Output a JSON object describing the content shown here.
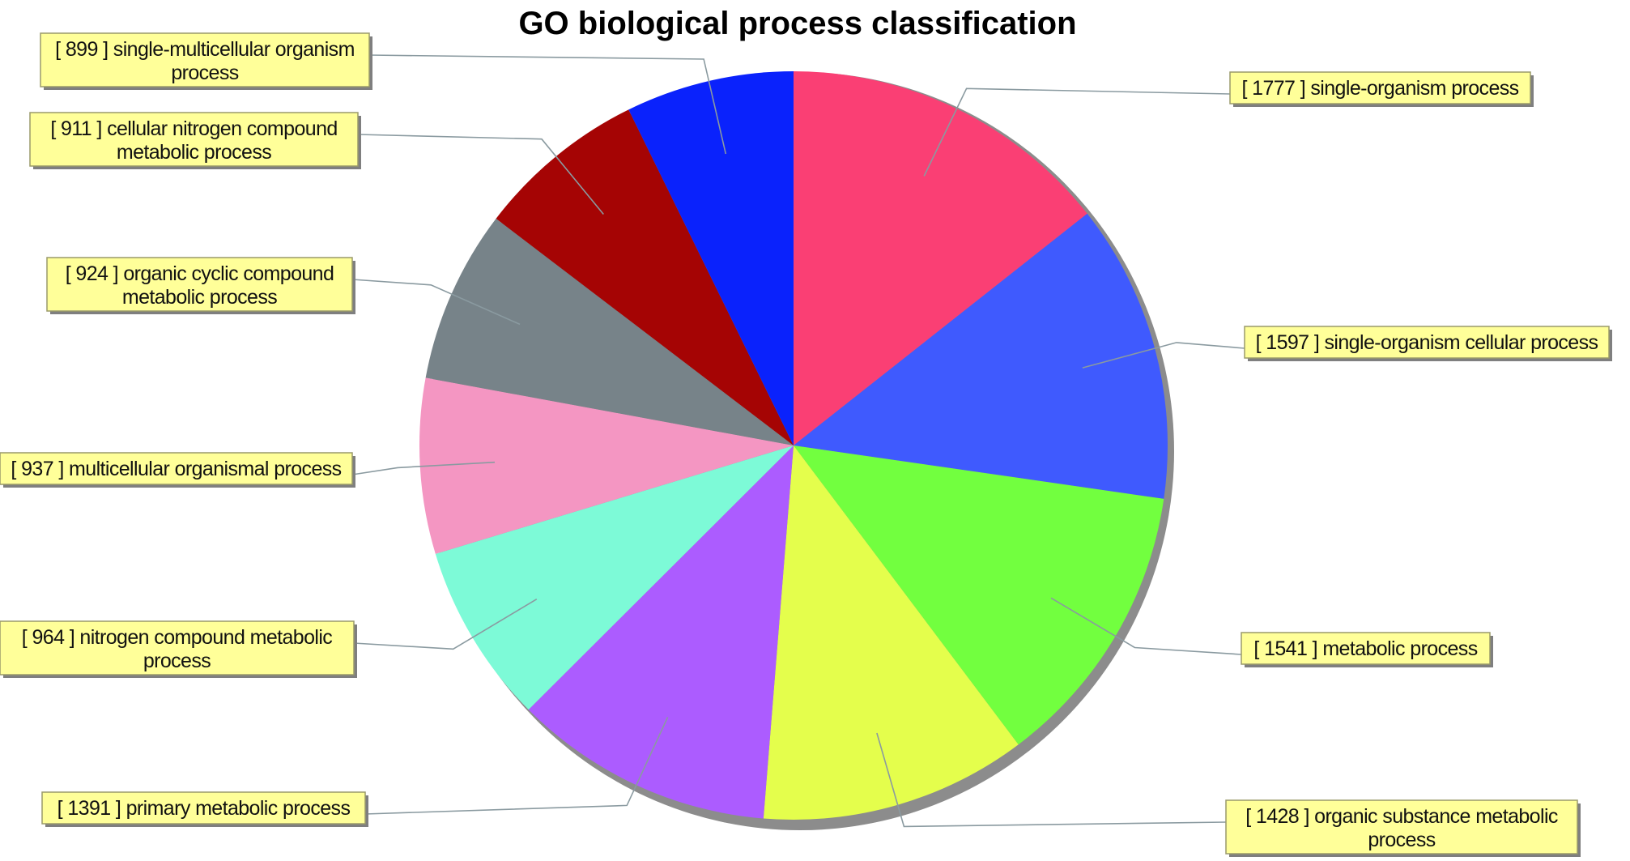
{
  "chart_data": {
    "type": "pie",
    "title": "GO biological process classification",
    "start_angle": "12 o'clock",
    "direction": "clockwise",
    "slices": [
      {
        "label": "[ 1777 ] single-organism process",
        "lines": [
          "[ 1777 ] single-organism process"
        ],
        "value": 1777,
        "color": "#fa3f74"
      },
      {
        "label": "[ 1597 ] single-organism cellular process",
        "lines": [
          "[ 1597 ] single-organism cellular process"
        ],
        "value": 1597,
        "color": "#3f5afe"
      },
      {
        "label": "[ 1541 ] metabolic process",
        "lines": [
          "[ 1541 ] metabolic process"
        ],
        "value": 1541,
        "color": "#72ff3f"
      },
      {
        "label": "[ 1428 ] organic substance metabolic process",
        "lines": [
          "[ 1428 ] organic substance metabolic",
          "process"
        ],
        "value": 1428,
        "color": "#e4fe4c"
      },
      {
        "label": "[ 1391 ] primary metabolic process",
        "lines": [
          "[ 1391 ] primary metabolic process"
        ],
        "value": 1391,
        "color": "#ac5cff"
      },
      {
        "label": "[ 964 ] nitrogen compound metabolic process",
        "lines": [
          "[ 964 ] nitrogen compound metabolic",
          "process"
        ],
        "value": 964,
        "color": "#7dfad7"
      },
      {
        "label": "[ 937 ] multicellular organismal process",
        "lines": [
          "[ 937 ] multicellular organismal process"
        ],
        "value": 937,
        "color": "#f496c2"
      },
      {
        "label": "[ 924 ] organic cyclic compound metabolic process",
        "lines": [
          "[ 924 ] organic cyclic compound",
          "metabolic process"
        ],
        "value": 924,
        "color": "#778389"
      },
      {
        "label": "[ 911 ] cellular nitrogen compound metabolic process",
        "lines": [
          "[ 911 ] cellular nitrogen compound",
          "metabolic process"
        ],
        "value": 911,
        "color": "#a50404"
      },
      {
        "label": "[ 899 ] single-multicellular organism process",
        "lines": [
          "[ 899 ] single-multicellular organism",
          "process"
        ],
        "value": 899,
        "color": "#0a22fc"
      }
    ]
  }
}
